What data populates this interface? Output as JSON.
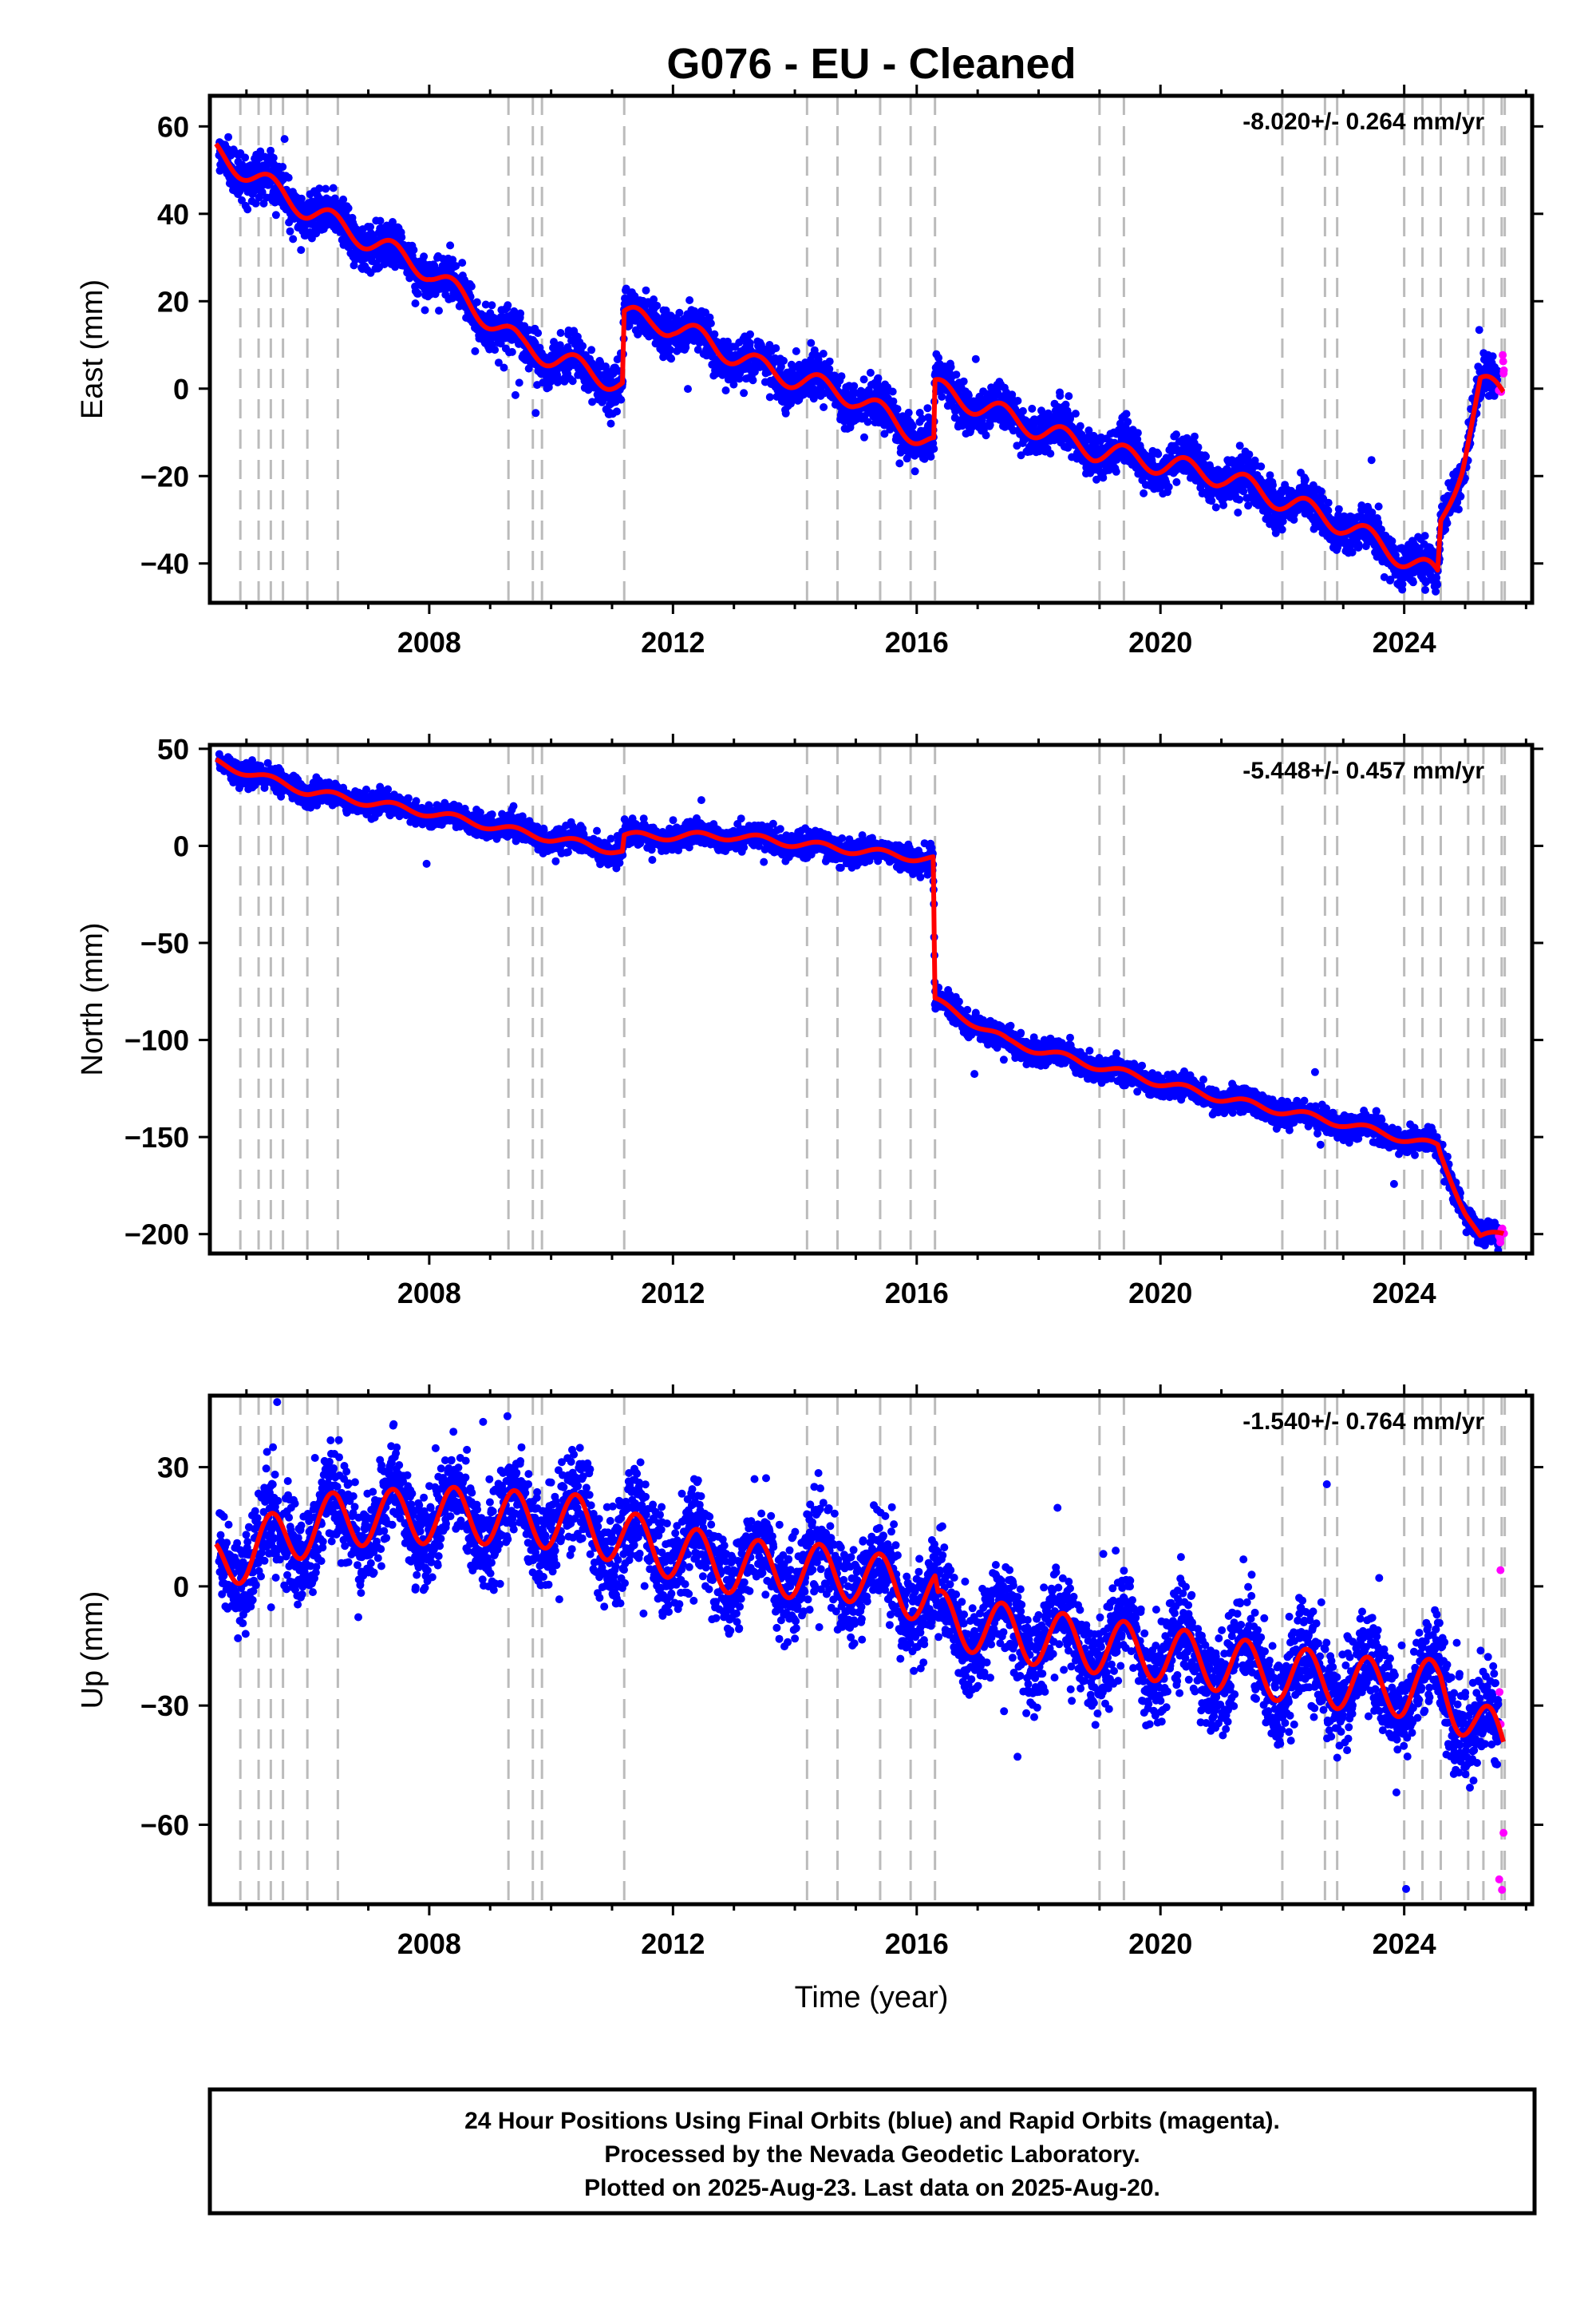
{
  "title": "G076  - EU - Cleaned",
  "x_axis_label": "Time (year)",
  "footer": [
    "24 Hour Positions Using Final Orbits (blue) and Rapid Orbits (magenta).",
    "Processed by the Nevada Geodetic Laboratory.",
    "Plotted on 2025-Aug-23. Last data on 2025-Aug-20."
  ],
  "colors": {
    "final_orbits": "#0000ff",
    "rapid_orbits": "#ff00ff",
    "model_fit": "#ff0000",
    "event_lines": "#bbbbbb"
  },
  "chart_data": [
    {
      "type": "scatter",
      "component": "east",
      "ylabel": "East (mm)",
      "rate": "-8.020+/- 0.264 mm/yr",
      "xlim": [
        2004.4,
        2026.1
      ],
      "ylim": [
        -49,
        67
      ],
      "x_ticks": [
        2008,
        2012,
        2016,
        2020,
        2024
      ],
      "y_ticks": [
        60,
        40,
        20,
        0,
        -20,
        -40
      ],
      "y_tick_labels": [
        "60",
        "40",
        "20",
        "0",
        "−20",
        "−40"
      ],
      "grid": false,
      "event_lines_x": [
        2004.9,
        2005.2,
        2005.4,
        2005.6,
        2006.0,
        2006.5,
        2009.3,
        2009.7,
        2009.85,
        2011.2,
        2014.2,
        2014.7,
        2015.4,
        2015.9,
        2016.3,
        2019.0,
        2019.4,
        2022.0,
        2022.7,
        2022.9,
        2024.0,
        2024.3,
        2024.6,
        2025.05,
        2025.3,
        2025.6,
        2025.65
      ],
      "model_fit": {
        "knots": [
          [
            2004.5,
            54
          ],
          [
            2006,
            41
          ],
          [
            2008,
            27
          ],
          [
            2009.5,
            10
          ],
          [
            2011.17,
            1
          ],
          [
            2011.2,
            17
          ],
          [
            2011.6,
            15
          ],
          [
            2012.0,
            14.5
          ],
          [
            2013.4,
            5
          ],
          [
            2015.0,
            -2
          ],
          [
            2016.28,
            -13
          ],
          [
            2016.3,
            0
          ],
          [
            2018.9,
            -14
          ],
          [
            2021.0,
            -20
          ],
          [
            2023.0,
            -31
          ],
          [
            2024.55,
            -43
          ],
          [
            2024.6,
            -31
          ],
          [
            2024.95,
            -17
          ],
          [
            2025.25,
            1
          ],
          [
            2025.62,
            -1
          ]
        ],
        "seasonal_amplitude": 2.5
      },
      "scatter_noise": 2.5,
      "rapid_orbits": {
        "x_range": [
          2025.55,
          2025.64
        ],
        "y_range": [
          -2,
          8
        ]
      }
    },
    {
      "type": "scatter",
      "component": "north",
      "ylabel": "North (mm)",
      "rate": "-5.448+/- 0.457 mm/yr",
      "xlim": [
        2004.4,
        2026.1
      ],
      "ylim": [
        -210,
        52
      ],
      "x_ticks": [
        2008,
        2012,
        2016,
        2020,
        2024
      ],
      "y_ticks": [
        50,
        0,
        -50,
        -100,
        -150,
        -200
      ],
      "y_tick_labels": [
        "50",
        "0",
        "−50",
        "−100",
        "−150",
        "−200"
      ],
      "grid": false,
      "event_lines_x": [
        2004.9,
        2005.2,
        2005.4,
        2005.6,
        2006.0,
        2006.5,
        2009.3,
        2009.7,
        2009.85,
        2011.2,
        2014.2,
        2014.7,
        2015.4,
        2015.9,
        2016.3,
        2019.0,
        2019.4,
        2022.0,
        2022.7,
        2022.9,
        2024.0,
        2024.3,
        2024.6,
        2025.05,
        2025.3,
        2025.6,
        2025.65
      ],
      "model_fit": {
        "knots": [
          [
            2004.5,
            43
          ],
          [
            2006,
            28
          ],
          [
            2008,
            17
          ],
          [
            2009.5,
            7
          ],
          [
            2011.17,
            -3
          ],
          [
            2011.2,
            5
          ],
          [
            2013.0,
            5
          ],
          [
            2016.27,
            -7
          ],
          [
            2016.3,
            -80
          ],
          [
            2017.5,
            -101
          ],
          [
            2019.5,
            -118
          ],
          [
            2021.0,
            -130
          ],
          [
            2023.0,
            -143
          ],
          [
            2024.55,
            -155
          ],
          [
            2024.6,
            -160
          ],
          [
            2025.0,
            -188
          ],
          [
            2025.25,
            -202
          ],
          [
            2025.62,
            -200
          ]
        ],
        "seasonal_amplitude": 2
      },
      "scatter_noise": 3,
      "rapid_orbits": {
        "x_range": [
          2025.55,
          2025.64
        ],
        "y_range": [
          -205,
          -196
        ]
      }
    },
    {
      "type": "scatter",
      "component": "up",
      "ylabel": "Up (mm)",
      "rate": "-1.540+/- 0.764 mm/yr",
      "xlim": [
        2004.4,
        2026.1
      ],
      "ylim": [
        -80,
        48
      ],
      "x_ticks": [
        2008,
        2012,
        2016,
        2020,
        2024
      ],
      "y_ticks": [
        30,
        0,
        -30,
        -60
      ],
      "y_tick_labels": [
        "30",
        "0",
        "−30",
        "−60"
      ],
      "grid": false,
      "event_lines_x": [
        2004.9,
        2005.2,
        2005.4,
        2005.6,
        2006.0,
        2006.5,
        2009.3,
        2009.7,
        2009.85,
        2011.2,
        2014.2,
        2014.7,
        2015.4,
        2015.9,
        2016.3,
        2019.0,
        2019.4,
        2022.0,
        2022.7,
        2022.9,
        2024.0,
        2024.3,
        2024.6,
        2025.05,
        2025.3,
        2025.6,
        2025.65
      ],
      "model_fit": {
        "knots": [
          [
            2004.5,
            5
          ],
          [
            2005.5,
            12
          ],
          [
            2006.5,
            17
          ],
          [
            2008.5,
            18
          ],
          [
            2010.5,
            16
          ],
          [
            2011.2,
            12
          ],
          [
            2013.0,
            5
          ],
          [
            2015.0,
            3
          ],
          [
            2016.3,
            -3
          ],
          [
            2016.35,
            -8
          ],
          [
            2018.0,
            -13
          ],
          [
            2020.0,
            -17
          ],
          [
            2022.0,
            -22
          ],
          [
            2024.0,
            -26
          ],
          [
            2024.6,
            -25
          ],
          [
            2025.2,
            -35
          ],
          [
            2025.62,
            -40
          ]
        ],
        "seasonal_amplitude": 7
      },
      "scatter_noise": 6,
      "rapid_orbits": {
        "x_range": [
          2025.55,
          2025.64
        ],
        "y_range": [
          -78,
          5
        ]
      }
    }
  ]
}
